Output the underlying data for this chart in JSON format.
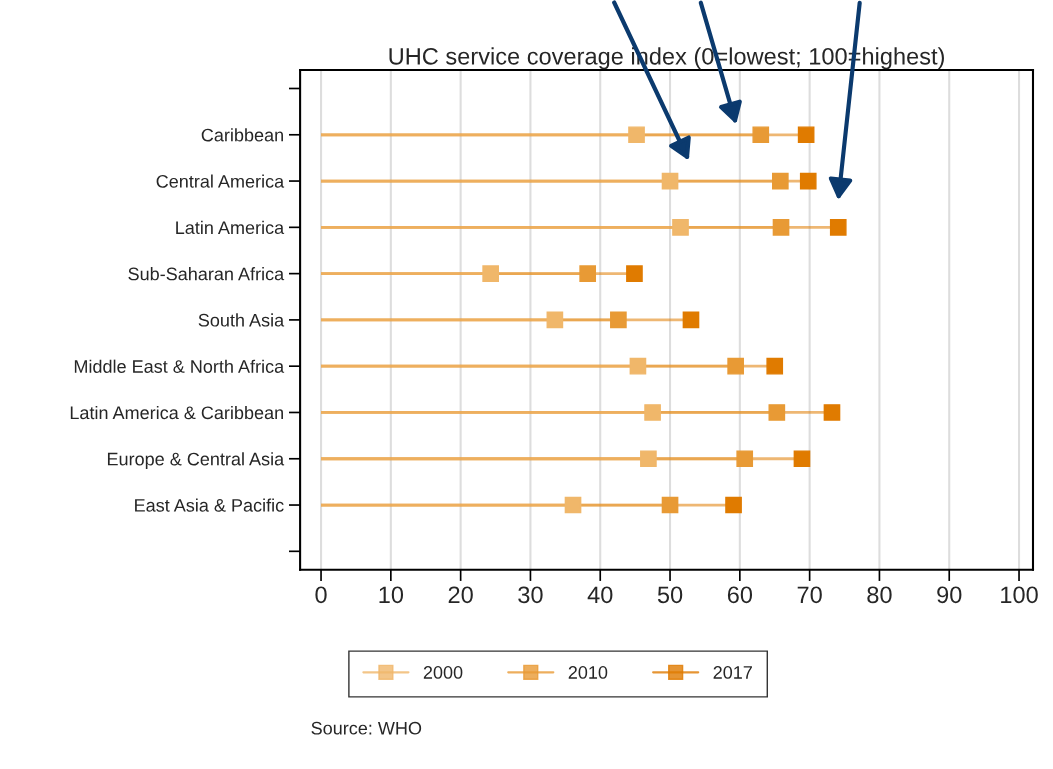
{
  "chart_data": {
    "type": "lollipop",
    "orientation": "horizontal",
    "title": "UHC service coverage index (0=lowest; 100=highest)",
    "categories": [
      null,
      "Caribbean",
      "Central America",
      "Latin America",
      "Sub-Saharan Africa",
      "South Asia",
      "Middle East & North Africa",
      "Latin America & Caribbean",
      "Europe & Central Asia",
      "East Asia & Pacific",
      null
    ],
    "series": [
      {
        "name": "2000",
        "color": "#f0b76a",
        "values": [
          null,
          45.2,
          50,
          51.5,
          24.3,
          33.5,
          45.4,
          47.5,
          46.9,
          36.1,
          null
        ]
      },
      {
        "name": "2010",
        "color": "#e89a35",
        "values": [
          null,
          63,
          65.8,
          65.9,
          38.2,
          42.6,
          59.4,
          65.3,
          60.7,
          50,
          null
        ]
      },
      {
        "name": "2017",
        "color": "#e07b00",
        "values": [
          null,
          69.5,
          69.8,
          74.1,
          44.9,
          53,
          65,
          73.2,
          68.9,
          59.1,
          null
        ]
      }
    ],
    "xlim": [
      -3,
      102
    ],
    "xticks": [
      0,
      10,
      20,
      30,
      40,
      50,
      60,
      70,
      80,
      90,
      100
    ],
    "grid": "x",
    "legend": "bottom",
    "marker": "square",
    "annotations": [
      "Source: WHO"
    ]
  }
}
